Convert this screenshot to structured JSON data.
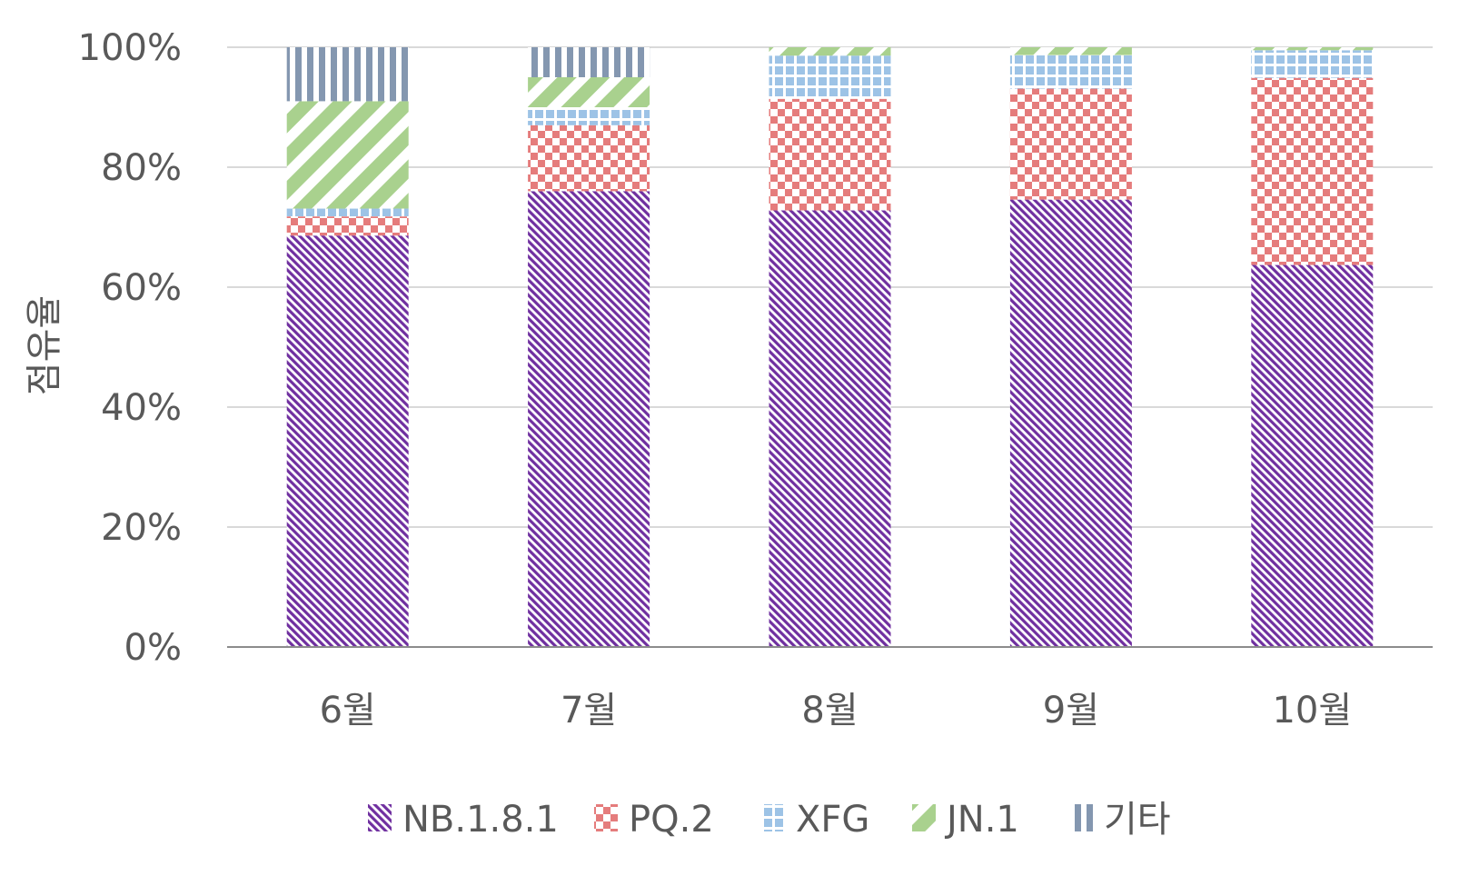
{
  "chart_data": {
    "type": "bar",
    "stacked": true,
    "percent": true,
    "categories": [
      "6월",
      "7월",
      "8월",
      "9월",
      "10월"
    ],
    "ylabel": "점유율",
    "xlabel": "",
    "ylim": [
      0,
      100
    ],
    "yticks": [
      "0%",
      "20%",
      "40%",
      "60%",
      "80%",
      "100%"
    ],
    "grid": true,
    "legend_position": "bottom",
    "series": [
      {
        "name": "NB.1.8.1",
        "color": "#7030A0",
        "pattern": "diagonal-stripes",
        "values": [
          68.6,
          76.0,
          72.8,
          74.6,
          63.7
        ]
      },
      {
        "name": "PQ.2",
        "color": "#E57C7C",
        "pattern": "checkerboard",
        "values": [
          3.2,
          11.0,
          18.6,
          18.5,
          31.2
        ]
      },
      {
        "name": "XFG",
        "color": "#9DC3E6",
        "pattern": "small-grid",
        "values": [
          1.3,
          3.0,
          7.2,
          5.6,
          4.6
        ]
      },
      {
        "name": "JN.1",
        "color": "#A9D18E",
        "pattern": "wide-diagonal",
        "values": [
          17.9,
          5.0,
          1.4,
          1.3,
          0.5
        ]
      },
      {
        "name": "기타",
        "color": "#8497B0",
        "pattern": "vertical-stripes",
        "values": [
          9.0,
          5.0,
          0.0,
          0.0,
          0.0
        ]
      }
    ]
  }
}
